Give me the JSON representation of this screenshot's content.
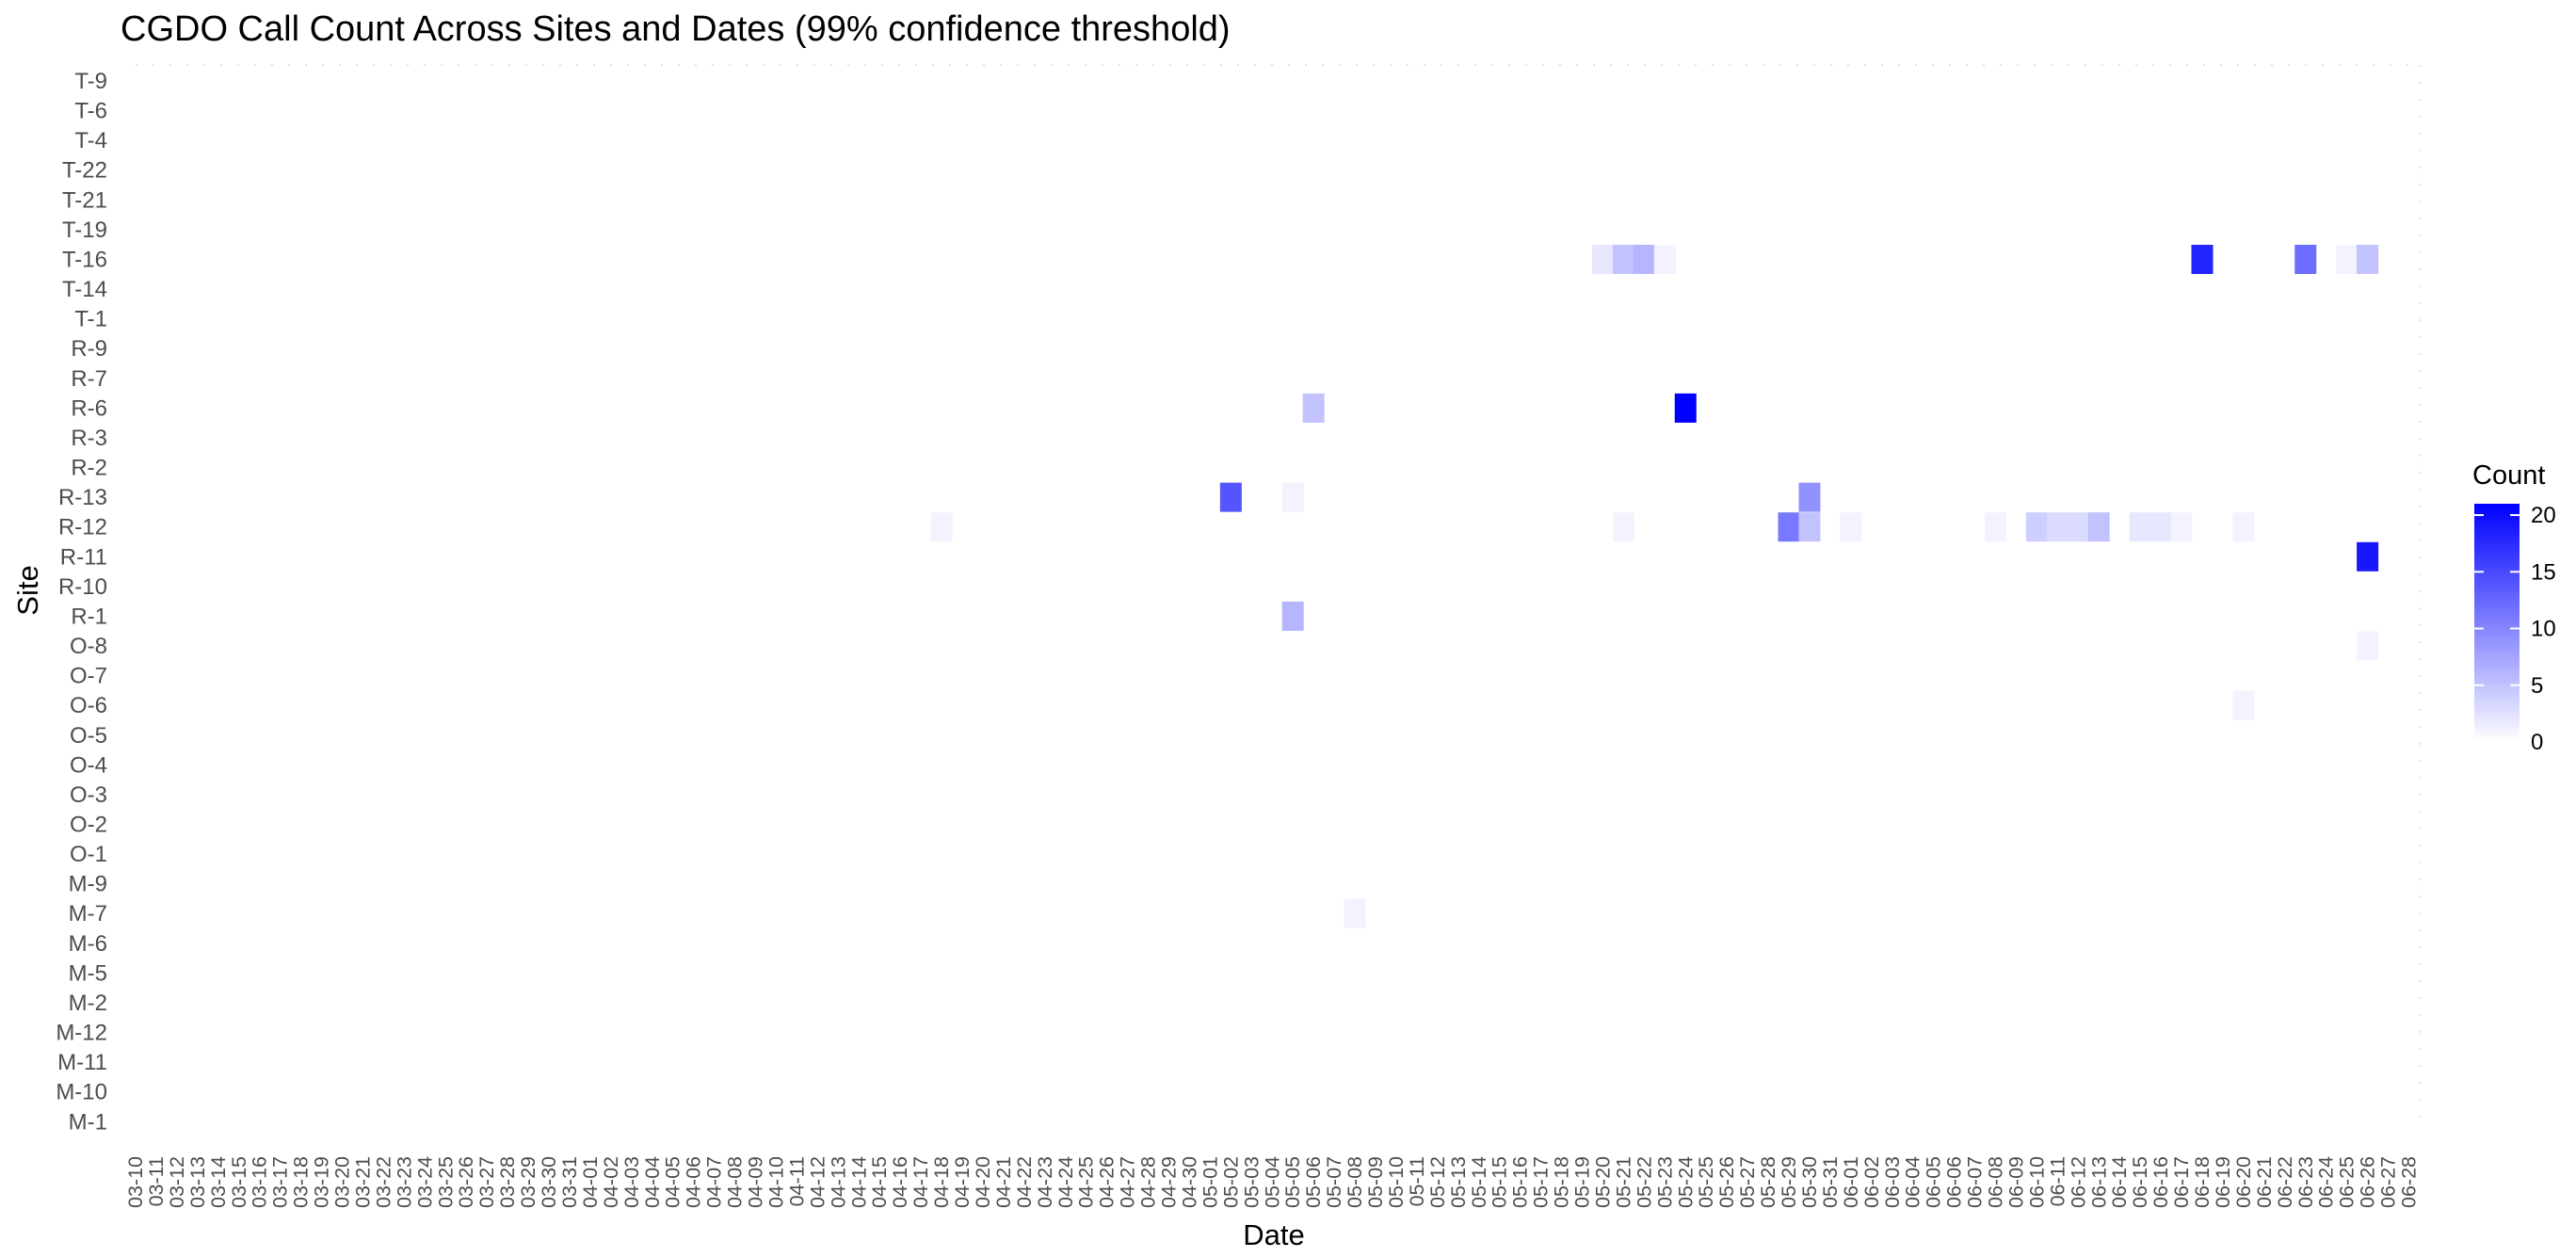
{
  "chart_data": {
    "type": "heatmap",
    "title": "CGDO Call Count Across Sites and Dates (99% confidence threshold)",
    "xlabel": "Date",
    "ylabel": "Site",
    "x_ticks": [
      "03-10",
      "03-11",
      "03-12",
      "03-13",
      "03-14",
      "03-15",
      "03-16",
      "03-17",
      "03-18",
      "03-19",
      "03-20",
      "03-21",
      "03-22",
      "03-23",
      "03-24",
      "03-25",
      "03-26",
      "03-27",
      "03-28",
      "03-29",
      "03-30",
      "03-31",
      "04-01",
      "04-02",
      "04-03",
      "04-04",
      "04-05",
      "04-06",
      "04-07",
      "04-08",
      "04-09",
      "04-10",
      "04-11",
      "04-12",
      "04-13",
      "04-14",
      "04-15",
      "04-16",
      "04-17",
      "04-18",
      "04-19",
      "04-20",
      "04-21",
      "04-22",
      "04-23",
      "04-24",
      "04-25",
      "04-26",
      "04-27",
      "04-28",
      "04-29",
      "04-30",
      "05-01",
      "05-02",
      "05-03",
      "05-04",
      "05-05",
      "05-06",
      "05-07",
      "05-08",
      "05-09",
      "05-10",
      "05-11",
      "05-12",
      "05-13",
      "05-14",
      "05-15",
      "05-16",
      "05-17",
      "05-18",
      "05-19",
      "05-20",
      "05-21",
      "05-22",
      "05-23",
      "05-24",
      "05-25",
      "05-26",
      "05-27",
      "05-28",
      "05-29",
      "05-30",
      "05-31",
      "06-01",
      "06-02",
      "06-03",
      "06-04",
      "06-05",
      "06-06",
      "06-07",
      "06-08",
      "06-09",
      "06-10",
      "06-11",
      "06-12",
      "06-13",
      "06-14",
      "06-15",
      "06-16",
      "06-17",
      "06-18",
      "06-19",
      "06-20",
      "06-21",
      "06-22",
      "06-23",
      "06-24",
      "06-25",
      "06-26",
      "06-27",
      "06-28"
    ],
    "sites": [
      "T-9",
      "T-6",
      "T-4",
      "T-22",
      "T-21",
      "T-19",
      "T-16",
      "T-14",
      "T-1",
      "R-9",
      "R-7",
      "R-6",
      "R-3",
      "R-2",
      "R-13",
      "R-12",
      "R-11",
      "R-10",
      "R-1",
      "O-8",
      "O-7",
      "O-6",
      "O-5",
      "O-4",
      "O-3",
      "O-2",
      "O-1",
      "M-9",
      "M-7",
      "M-6",
      "M-5",
      "M-2",
      "M-12",
      "M-11",
      "M-10",
      "M-1"
    ],
    "cells": [
      {
        "site": "T-16",
        "date": "05-20",
        "count": 2
      },
      {
        "site": "T-16",
        "date": "05-21",
        "count": 5
      },
      {
        "site": "T-16",
        "date": "05-22",
        "count": 6
      },
      {
        "site": "T-16",
        "date": "05-23",
        "count": 1
      },
      {
        "site": "T-16",
        "date": "06-18",
        "count": 18
      },
      {
        "site": "T-16",
        "date": "06-23",
        "count": 12
      },
      {
        "site": "T-16",
        "date": "06-25",
        "count": 1
      },
      {
        "site": "T-16",
        "date": "06-26",
        "count": 5
      },
      {
        "site": "R-6",
        "date": "05-06",
        "count": 5
      },
      {
        "site": "R-6",
        "date": "05-24",
        "count": 21
      },
      {
        "site": "R-13",
        "date": "05-02",
        "count": 14
      },
      {
        "site": "R-13",
        "date": "05-05",
        "count": 1
      },
      {
        "site": "R-13",
        "date": "05-30",
        "count": 9
      },
      {
        "site": "R-12",
        "date": "04-18",
        "count": 1
      },
      {
        "site": "R-12",
        "date": "05-21",
        "count": 1
      },
      {
        "site": "R-12",
        "date": "05-29",
        "count": 11
      },
      {
        "site": "R-12",
        "date": "05-30",
        "count": 5
      },
      {
        "site": "R-12",
        "date": "06-01",
        "count": 1
      },
      {
        "site": "R-12",
        "date": "06-08",
        "count": 1
      },
      {
        "site": "R-12",
        "date": "06-10",
        "count": 4
      },
      {
        "site": "R-12",
        "date": "06-11",
        "count": 3
      },
      {
        "site": "R-12",
        "date": "06-12",
        "count": 3
      },
      {
        "site": "R-12",
        "date": "06-13",
        "count": 5
      },
      {
        "site": "R-12",
        "date": "06-15",
        "count": 2
      },
      {
        "site": "R-12",
        "date": "06-16",
        "count": 2
      },
      {
        "site": "R-12",
        "date": "06-17",
        "count": 1
      },
      {
        "site": "R-12",
        "date": "06-20",
        "count": 1
      },
      {
        "site": "R-11",
        "date": "06-26",
        "count": 19
      },
      {
        "site": "R-1",
        "date": "05-05",
        "count": 6
      },
      {
        "site": "O-8",
        "date": "06-26",
        "count": 1
      },
      {
        "site": "O-6",
        "date": "06-20",
        "count": 1
      },
      {
        "site": "M-7",
        "date": "05-08",
        "count": 1
      }
    ],
    "scale": {
      "min": 0,
      "max": 21,
      "low_color": "#ffffff",
      "high_color": "#0000ff"
    },
    "legend": {
      "title": "Count",
      "position": "right",
      "ticks": [
        0,
        5,
        10,
        15,
        20
      ]
    },
    "grid": true
  }
}
